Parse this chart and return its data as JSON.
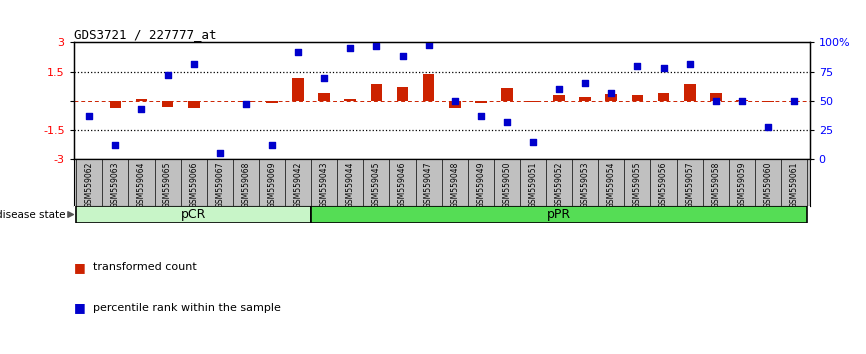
{
  "title": "GDS3721 / 227777_at",
  "samples": [
    "GSM559062",
    "GSM559063",
    "GSM559064",
    "GSM559065",
    "GSM559066",
    "GSM559067",
    "GSM559068",
    "GSM559069",
    "GSM559042",
    "GSM559043",
    "GSM559044",
    "GSM559045",
    "GSM559046",
    "GSM559047",
    "GSM559048",
    "GSM559049",
    "GSM559050",
    "GSM559051",
    "GSM559052",
    "GSM559053",
    "GSM559054",
    "GSM559055",
    "GSM559056",
    "GSM559057",
    "GSM559058",
    "GSM559059",
    "GSM559060",
    "GSM559061"
  ],
  "bar_values": [
    0.0,
    -0.38,
    0.1,
    -0.32,
    -0.38,
    0.0,
    -0.08,
    -0.1,
    1.2,
    0.38,
    0.12,
    0.85,
    0.72,
    1.4,
    -0.38,
    -0.1,
    0.65,
    -0.06,
    0.28,
    0.2,
    0.35,
    0.3,
    0.38,
    0.85,
    0.38,
    0.05,
    -0.05,
    -0.02
  ],
  "scatter_values": [
    37,
    12,
    43,
    72,
    82,
    5,
    47,
    12,
    92,
    70,
    95,
    97,
    88,
    98,
    50,
    37,
    32,
    15,
    60,
    65,
    57,
    80,
    78,
    82,
    50,
    50,
    28,
    50
  ],
  "group1_count": 9,
  "group2_count": 19,
  "group1_label": "pCR",
  "group2_label": "pPR",
  "group1_color": "#c8f5c8",
  "group2_color": "#55dd55",
  "bar_color": "#CC2200",
  "scatter_color": "#0000CC",
  "ylim_left": [
    -3,
    3
  ],
  "ylim_right": [
    0,
    100
  ],
  "yticks_left": [
    -3,
    -1.5,
    0,
    1.5,
    3
  ],
  "yticks_right": [
    0,
    25,
    50,
    75,
    100
  ],
  "ytick_labels_right": [
    "0",
    "25",
    "50",
    "75",
    "100%"
  ],
  "dotted_lines": [
    -1.5,
    1.5
  ],
  "bg_color": "#ffffff",
  "legend_bar_label": "transformed count",
  "legend_scatter_label": "percentile rank within the sample"
}
